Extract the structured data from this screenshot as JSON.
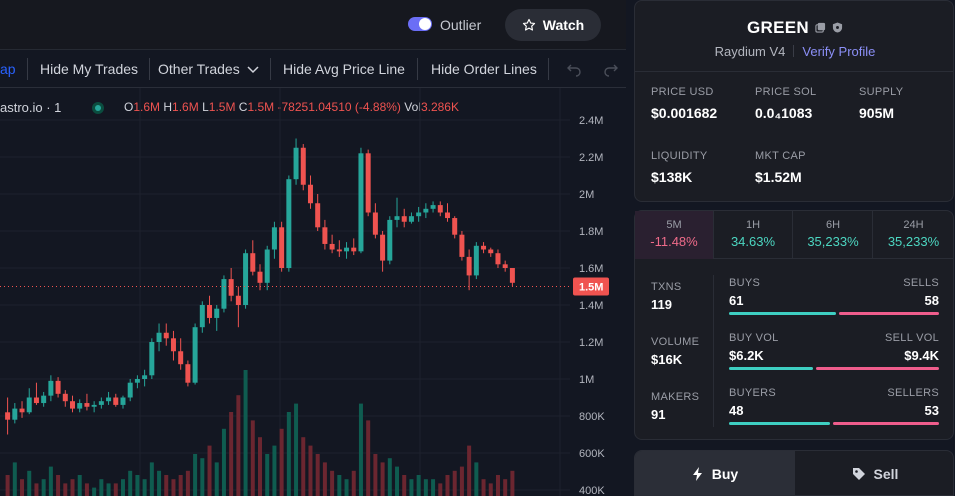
{
  "header": {
    "outlier_label": "Outlier",
    "watch_label": "Watch"
  },
  "toolbar": {
    "cut_item": "ap",
    "hide_my_trades": "Hide My Trades",
    "other_trades": "Other Trades",
    "hide_avg_price_line": "Hide Avg Price Line",
    "hide_order_lines": "Hide Order Lines"
  },
  "legend": {
    "source": "astro.io · 1",
    "o_key": "O",
    "o_val": "1.6M",
    "h_key": "H",
    "h_val": "1.6M",
    "l_key": "L",
    "l_val": "1.5M",
    "c_key": "C",
    "c_val": "1.5M",
    "change": "-78251.04510 (-4.88%)",
    "vol_key": "Vol",
    "vol_val": "3.286K"
  },
  "price_axis": {
    "ticks": [
      "2.4M",
      "2.2M",
      "2M",
      "1.8M",
      "1.6M",
      "1.4M",
      "1.2M",
      "1M",
      "800K",
      "600K",
      "400K"
    ],
    "current_label": "1.5M"
  },
  "chart_data": {
    "type": "candlestick",
    "y_unit": "market cap",
    "ylim": [
      400000,
      2500000
    ],
    "current_value": 1500000,
    "candles": [
      [
        820000,
        900000,
        700000,
        780000
      ],
      [
        780000,
        870000,
        760000,
        840000
      ],
      [
        840000,
        880000,
        790000,
        820000
      ],
      [
        820000,
        950000,
        810000,
        900000
      ],
      [
        900000,
        980000,
        860000,
        870000
      ],
      [
        870000,
        930000,
        850000,
        910000
      ],
      [
        910000,
        1020000,
        880000,
        990000
      ],
      [
        990000,
        1010000,
        900000,
        920000
      ],
      [
        920000,
        940000,
        850000,
        880000
      ],
      [
        880000,
        910000,
        820000,
        840000
      ],
      [
        840000,
        890000,
        820000,
        870000
      ],
      [
        870000,
        920000,
        830000,
        850000
      ],
      [
        850000,
        880000,
        820000,
        860000
      ],
      [
        860000,
        900000,
        840000,
        880000
      ],
      [
        880000,
        930000,
        860000,
        900000
      ],
      [
        900000,
        920000,
        850000,
        860000
      ],
      [
        860000,
        910000,
        840000,
        900000
      ],
      [
        900000,
        1000000,
        880000,
        980000
      ],
      [
        980000,
        1020000,
        950000,
        1000000
      ],
      [
        1000000,
        1050000,
        960000,
        1020000
      ],
      [
        1020000,
        1220000,
        1000000,
        1200000
      ],
      [
        1200000,
        1300000,
        1150000,
        1250000
      ],
      [
        1250000,
        1300000,
        1180000,
        1220000
      ],
      [
        1220000,
        1260000,
        1100000,
        1150000
      ],
      [
        1150000,
        1220000,
        1050000,
        1080000
      ],
      [
        1080000,
        1100000,
        960000,
        980000
      ],
      [
        980000,
        1300000,
        970000,
        1280000
      ],
      [
        1280000,
        1420000,
        1250000,
        1400000
      ],
      [
        1400000,
        1450000,
        1300000,
        1330000
      ],
      [
        1330000,
        1400000,
        1260000,
        1380000
      ],
      [
        1380000,
        1560000,
        1360000,
        1540000
      ],
      [
        1540000,
        1600000,
        1420000,
        1450000
      ],
      [
        1450000,
        1500000,
        1280000,
        1400000
      ],
      [
        1400000,
        1700000,
        1380000,
        1680000
      ],
      [
        1680000,
        1750000,
        1560000,
        1580000
      ],
      [
        1580000,
        1620000,
        1480000,
        1520000
      ],
      [
        1520000,
        1720000,
        1480000,
        1700000
      ],
      [
        1700000,
        1850000,
        1650000,
        1820000
      ],
      [
        1820000,
        1850000,
        1580000,
        1600000
      ],
      [
        1600000,
        2100000,
        1580000,
        2080000
      ],
      [
        2080000,
        2300000,
        2050000,
        2250000
      ],
      [
        2250000,
        2270000,
        2020000,
        2050000
      ],
      [
        2050000,
        2100000,
        1920000,
        1950000
      ],
      [
        1950000,
        2000000,
        1800000,
        1820000
      ],
      [
        1820000,
        1860000,
        1700000,
        1730000
      ],
      [
        1730000,
        1780000,
        1680000,
        1700000
      ],
      [
        1700000,
        1750000,
        1660000,
        1690000
      ],
      [
        1690000,
        1740000,
        1650000,
        1710000
      ],
      [
        1710000,
        1760000,
        1670000,
        1690000
      ],
      [
        1690000,
        2250000,
        1680000,
        2220000
      ],
      [
        2220000,
        2240000,
        1880000,
        1900000
      ],
      [
        1900000,
        1950000,
        1760000,
        1780000
      ],
      [
        1780000,
        1800000,
        1580000,
        1640000
      ],
      [
        1640000,
        1880000,
        1620000,
        1860000
      ],
      [
        1860000,
        1980000,
        1820000,
        1880000
      ],
      [
        1880000,
        1920000,
        1820000,
        1850000
      ],
      [
        1850000,
        1900000,
        1840000,
        1880000
      ],
      [
        1880000,
        1930000,
        1850000,
        1900000
      ],
      [
        1900000,
        1950000,
        1870000,
        1920000
      ],
      [
        1920000,
        1960000,
        1900000,
        1940000
      ],
      [
        1940000,
        1960000,
        1880000,
        1900000
      ],
      [
        1900000,
        1950000,
        1850000,
        1870000
      ],
      [
        1870000,
        1880000,
        1760000,
        1780000
      ],
      [
        1780000,
        1800000,
        1640000,
        1660000
      ],
      [
        1660000,
        1700000,
        1480000,
        1560000
      ],
      [
        1560000,
        1740000,
        1540000,
        1720000
      ],
      [
        1720000,
        1740000,
        1680000,
        1700000
      ],
      [
        1700000,
        1710000,
        1660000,
        1680000
      ],
      [
        1680000,
        1700000,
        1600000,
        1620000
      ],
      [
        1620000,
        1640000,
        1580000,
        1600000
      ],
      [
        1600000,
        1600000,
        1500000,
        1520000
      ]
    ],
    "volumes": [
      [
        0.05,
        "d"
      ],
      [
        0.08,
        "u"
      ],
      [
        0.04,
        "d"
      ],
      [
        0.06,
        "u"
      ],
      [
        0.03,
        "d"
      ],
      [
        0.04,
        "u"
      ],
      [
        0.07,
        "u"
      ],
      [
        0.05,
        "d"
      ],
      [
        0.03,
        "d"
      ],
      [
        0.04,
        "d"
      ],
      [
        0.05,
        "u"
      ],
      [
        0.03,
        "d"
      ],
      [
        0.02,
        "u"
      ],
      [
        0.04,
        "u"
      ],
      [
        0.03,
        "u"
      ],
      [
        0.03,
        "d"
      ],
      [
        0.04,
        "u"
      ],
      [
        0.06,
        "u"
      ],
      [
        0.05,
        "u"
      ],
      [
        0.04,
        "u"
      ],
      [
        0.08,
        "u"
      ],
      [
        0.06,
        "u"
      ],
      [
        0.05,
        "d"
      ],
      [
        0.04,
        "d"
      ],
      [
        0.05,
        "d"
      ],
      [
        0.06,
        "d"
      ],
      [
        0.1,
        "u"
      ],
      [
        0.09,
        "u"
      ],
      [
        0.12,
        "d"
      ],
      [
        0.08,
        "u"
      ],
      [
        0.16,
        "u"
      ],
      [
        0.2,
        "d"
      ],
      [
        0.24,
        "d"
      ],
      [
        0.3,
        "u"
      ],
      [
        0.18,
        "d"
      ],
      [
        0.14,
        "d"
      ],
      [
        0.1,
        "u"
      ],
      [
        0.12,
        "u"
      ],
      [
        0.16,
        "d"
      ],
      [
        0.2,
        "u"
      ],
      [
        0.22,
        "u"
      ],
      [
        0.14,
        "d"
      ],
      [
        0.12,
        "d"
      ],
      [
        0.1,
        "d"
      ],
      [
        0.08,
        "d"
      ],
      [
        0.06,
        "d"
      ],
      [
        0.05,
        "u"
      ],
      [
        0.04,
        "u"
      ],
      [
        0.06,
        "d"
      ],
      [
        0.22,
        "u"
      ],
      [
        0.18,
        "d"
      ],
      [
        0.1,
        "d"
      ],
      [
        0.08,
        "d"
      ],
      [
        0.09,
        "u"
      ],
      [
        0.07,
        "u"
      ],
      [
        0.05,
        "d"
      ],
      [
        0.04,
        "u"
      ],
      [
        0.05,
        "u"
      ],
      [
        0.04,
        "u"
      ],
      [
        0.04,
        "u"
      ],
      [
        0.03,
        "d"
      ],
      [
        0.05,
        "d"
      ],
      [
        0.06,
        "d"
      ],
      [
        0.07,
        "d"
      ],
      [
        0.12,
        "d"
      ],
      [
        0.08,
        "u"
      ],
      [
        0.04,
        "d"
      ],
      [
        0.03,
        "d"
      ],
      [
        0.05,
        "d"
      ],
      [
        0.04,
        "d"
      ],
      [
        0.06,
        "d"
      ]
    ]
  },
  "token": {
    "name": "GREEN",
    "dex": "Raydium V4",
    "verify_label": "Verify Profile",
    "stats": {
      "price_usd_label": "PRICE USD",
      "price_usd": "$0.001682",
      "price_sol_label": "PRICE SOL",
      "price_sol": "0.0₄1083",
      "supply_label": "SUPPLY",
      "supply": "905M",
      "liquidity_label": "LIQUIDITY",
      "liquidity": "$138K",
      "mkt_cap_label": "MKT CAP",
      "mkt_cap": "$1.52M"
    }
  },
  "timeframes": [
    {
      "label": "5M",
      "change": "-11.48%"
    },
    {
      "label": "1H",
      "change": "34.63%"
    },
    {
      "label": "6H",
      "change": "35,233%"
    },
    {
      "label": "24H",
      "change": "35,233%"
    }
  ],
  "activity": {
    "txns_label": "TXNS",
    "txns": "119",
    "buys_label": "BUYS",
    "buys": "61",
    "sells_label": "SELLS",
    "sells": "58",
    "volume_label": "VOLUME",
    "volume": "$16K",
    "buy_vol_label": "BUY VOL",
    "buy_vol": "$6.2K",
    "sell_vol_label": "SELL VOL",
    "sell_vol": "$9.4K",
    "makers_label": "MAKERS",
    "makers": "91",
    "buyers_label": "BUYERS",
    "buyers": "48",
    "sellers_label": "SELLERS",
    "sellers": "53",
    "buys_ratio": 0.51,
    "buy_vol_ratio": 0.4,
    "buyers_ratio": 0.48
  },
  "trade": {
    "buy_label": "Buy",
    "sell_label": "Sell"
  },
  "colors": {
    "up": "#26a69a",
    "down": "#ef5350",
    "accent": "#6b6ef6",
    "bg": "#131722"
  }
}
